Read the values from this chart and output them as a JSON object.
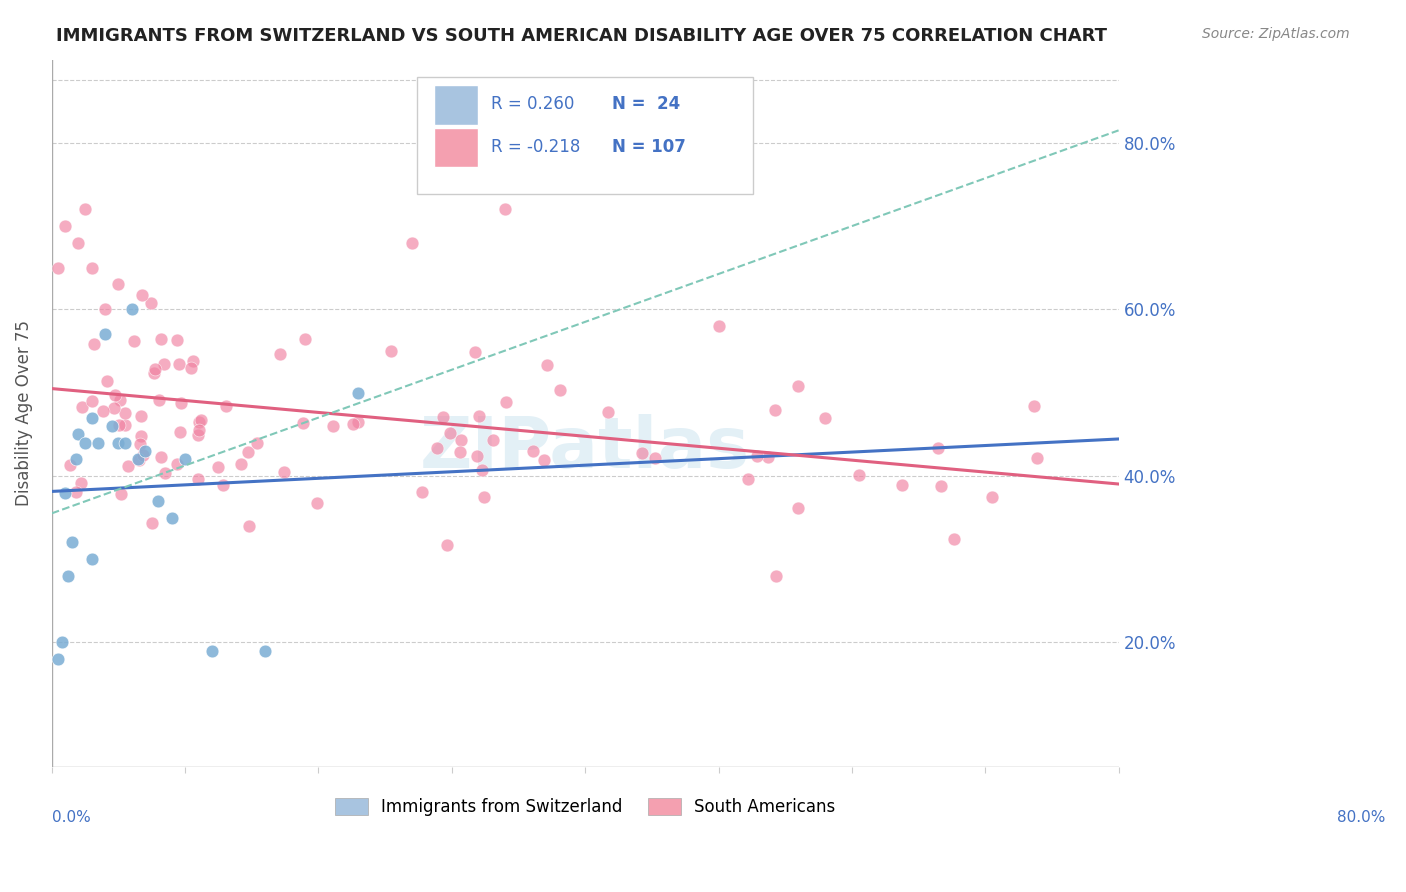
{
  "title": "IMMIGRANTS FROM SWITZERLAND VS SOUTH AMERICAN DISABILITY AGE OVER 75 CORRELATION CHART",
  "source": "Source: ZipAtlas.com",
  "ylabel": "Disability Age Over 75",
  "legend_r1": "R = 0.260",
  "legend_n1": "N =  24",
  "legend_r2": "R = -0.218",
  "legend_n2": "N = 107",
  "swiss_legend_color": "#a8c4e0",
  "swiss_dot_color": "#7aadd4",
  "swiss_line_color": "#4472c4",
  "south_legend_color": "#f4a0b0",
  "south_dot_color": "#f080a0",
  "south_line_color": "#e06080",
  "dash_line_color": "#80c8b8",
  "background_color": "#ffffff",
  "watermark": "ZIPatlas",
  "legend_label_swiss": "Immigrants from Switzerland",
  "legend_label_south": "South Americans",
  "xlim": [
    0.0,
    0.8
  ],
  "ylim": [
    0.05,
    0.9
  ],
  "ytick_values": [
    0.2,
    0.4,
    0.6,
    0.8
  ],
  "ytick_labels": [
    "20.0%",
    "40.0%",
    "60.0%",
    "80.0%"
  ]
}
